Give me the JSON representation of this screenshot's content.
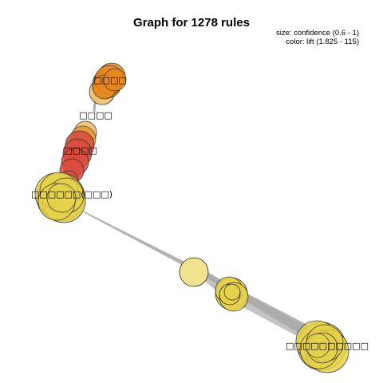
{
  "title": "Graph for 1278 rules",
  "legend": {
    "size_text": "size: confidence (0.6 - 1)",
    "color_text": "color: lift (1.825 - 115)"
  },
  "colors": {
    "edge": "#aaaaaa",
    "node_outline": "#222222",
    "yellow": "#e6d24a",
    "pale_yellow": "#efe38e",
    "red": "#d94c3f",
    "orange": "#e8891f",
    "light_orange": "#efc36a"
  },
  "labels": {
    "top_cluster": "□□□□",
    "upper_item": "□□□□",
    "mid_cluster": "□□□□",
    "left_cluster": "□□□□□□(□□□)",
    "bottom_right": "□□□□□□□□□□"
  }
}
